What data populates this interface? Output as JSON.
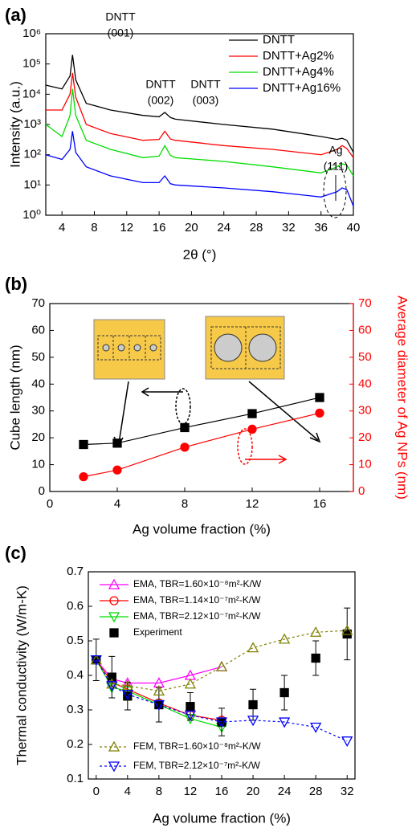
{
  "chart_data": [
    {
      "type": "line",
      "label": "(a)",
      "x_label": "2θ (°)",
      "y_label": "Intensity (a.u.)",
      "log_y": true,
      "xlim": [
        2,
        40
      ],
      "xticks": [
        4,
        8,
        12,
        16,
        20,
        24,
        28,
        32,
        36,
        40
      ],
      "ylim": [
        1,
        1000000
      ],
      "yticks": [
        {
          "value": 1,
          "label": "10⁰"
        },
        {
          "value": 10,
          "label": "10¹"
        },
        {
          "value": 100,
          "label": "10²"
        },
        {
          "value": 1000,
          "label": "10³"
        },
        {
          "value": 10000,
          "label": "10⁴"
        },
        {
          "value": 100000,
          "label": "10⁵"
        },
        {
          "value": 1000000,
          "label": "10⁶"
        }
      ],
      "legend": "upper right",
      "annotations": [
        [
          "DNTT",
          "(001)"
        ],
        [
          "DNTT",
          "(002)"
        ],
        [
          "DNTT",
          "(003)"
        ],
        [
          "Ag",
          "(111)"
        ]
      ],
      "x": [
        2,
        4,
        5,
        5.3,
        5.7,
        7,
        10,
        14,
        16,
        16.7,
        17.4,
        18,
        24,
        30,
        36,
        38,
        38.6,
        39.2,
        40
      ],
      "series": [
        {
          "name": "DNTT",
          "color": "#000000",
          "values": [
            20000,
            15000,
            40000,
            200000,
            30000,
            5000,
            3000,
            2000,
            1800,
            2500,
            1700,
            1500,
            1000,
            700,
            400,
            320,
            350,
            300,
            120
          ]
        },
        {
          "name": "DNTT+Ag2%",
          "color": "#ff0000",
          "values": [
            3000,
            3000,
            10000,
            50000,
            8000,
            1000,
            500,
            300,
            320,
            600,
            330,
            300,
            200,
            150,
            100,
            150,
            200,
            160,
            80
          ]
        },
        {
          "name": "DNTT+Ag4%",
          "color": "#00dd00",
          "values": [
            1000,
            400,
            2000,
            15000,
            2000,
            300,
            150,
            80,
            90,
            200,
            95,
            80,
            60,
            40,
            25,
            40,
            50,
            45,
            20
          ]
        },
        {
          "name": "DNTT+Ag16%",
          "color": "#0000ff",
          "values": [
            100,
            70,
            150,
            600,
            120,
            40,
            20,
            12,
            12,
            20,
            11,
            10,
            8,
            6,
            4,
            6,
            8,
            7,
            2
          ]
        }
      ]
    },
    {
      "type": "line",
      "label": "(b)",
      "x_label": "Ag volume fraction (%)",
      "y_label": "Cube length (nm)",
      "y2_label": "Average diameter of Ag NPs (nm)",
      "xlim": [
        0,
        18
      ],
      "xticks": [
        0,
        4,
        8,
        12,
        16
      ],
      "ylim": [
        0,
        70
      ],
      "yticks": [
        0,
        10,
        20,
        30,
        40,
        50,
        60,
        70
      ],
      "y2lim": [
        0,
        70
      ],
      "y2ticks": [
        0,
        10,
        20,
        30,
        40,
        50,
        60,
        70
      ],
      "y2_color": "#ff0000",
      "x": [
        2,
        4,
        8,
        12,
        16
      ],
      "series": [
        {
          "color": "#000000",
          "marker": "square",
          "filled": true,
          "values": [
            17.5,
            18,
            23.8,
            29,
            35
          ]
        },
        {
          "color": "#ff0000",
          "marker": "circle",
          "filled": true,
          "axis": "y2",
          "values": [
            5.5,
            8,
            16.5,
            23.2,
            29.2
          ]
        }
      ]
    },
    {
      "type": "line",
      "label": "(c)",
      "x_label": "Ag volume fraction (%)",
      "y_label": "Thermal conductivity (W/m-K)",
      "xlim": [
        -1,
        33
      ],
      "xticks": [
        0,
        4,
        8,
        12,
        16,
        20,
        24,
        28,
        32
      ],
      "ylim": [
        0.1,
        0.7
      ],
      "yticks": [
        0.1,
        0.2,
        0.3,
        0.4,
        0.5,
        0.6,
        0.7
      ],
      "legend": "upper left",
      "x": [
        0,
        2,
        4,
        8,
        12,
        16,
        20,
        24,
        28,
        32
      ],
      "series": [
        {
          "name": "EMA, TBR=1.60×10⁻⁸m²-K/W",
          "color": "#ff00ff",
          "marker": "triangle-up",
          "values": [
            0.445,
            0.39,
            0.378,
            0.378,
            0.4,
            0.425,
            null,
            null,
            null,
            null
          ]
        },
        {
          "name": "EMA, TBR=1.14×10⁻⁷m²-K/W",
          "color": "#ff0000",
          "marker": "circle",
          "values": [
            0.445,
            0.38,
            0.36,
            0.32,
            0.285,
            0.27,
            null,
            null,
            null,
            null
          ]
        },
        {
          "name": "EMA, TBR=2.12×10⁻⁷m²-K/W",
          "color": "#00dd00",
          "marker": "triangle-down",
          "values": [
            0.445,
            0.365,
            0.355,
            0.315,
            0.275,
            0.25,
            null,
            null,
            null,
            null
          ]
        },
        {
          "name": "Experiment",
          "color": "#000000",
          "marker": "square",
          "filled": true,
          "no_line": true,
          "values": [
            0.445,
            0.395,
            0.34,
            0.315,
            0.31,
            0.265,
            0.315,
            0.35,
            0.45,
            0.52
          ],
          "errors": [
            0.06,
            0.06,
            0.04,
            0.05,
            0.04,
            0.04,
            0.045,
            0.05,
            0.05,
            0.075
          ]
        },
        {
          "name": "FEM, TBR=1.60×10⁻⁸m²-K/W",
          "color": "#808000",
          "marker": "triangle-up",
          "dashed": true,
          "values": [
            0.445,
            0.375,
            0.37,
            0.355,
            0.375,
            0.425,
            0.48,
            0.505,
            0.525,
            0.53
          ]
        },
        {
          "name": "FEM, TBR=2.12×10⁻⁷m²-K/W",
          "color": "#0000ff",
          "marker": "triangle-down",
          "dashed": true,
          "values": [
            0.445,
            0.37,
            0.345,
            0.315,
            0.285,
            0.265,
            0.27,
            0.265,
            0.25,
            0.21
          ]
        }
      ]
    }
  ]
}
